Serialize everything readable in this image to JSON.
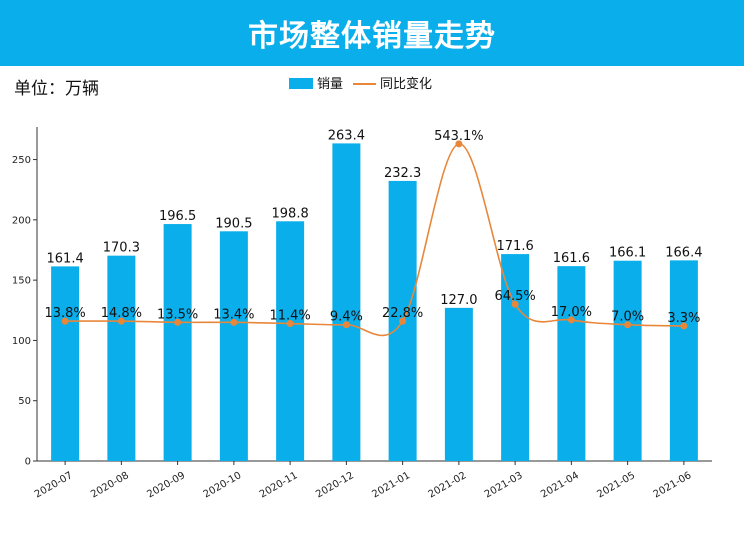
{
  "header": {
    "title": "市场整体销量走势"
  },
  "unit_label": "单位：万辆",
  "colors": {
    "bar": "#0aaeea",
    "line": "#e8873a",
    "title_bg": "#0aaeea",
    "axis": "#333333"
  },
  "chart_data": {
    "type": "bar",
    "categories": [
      "2020-07",
      "2020-08",
      "2020-09",
      "2020-10",
      "2020-11",
      "2020-12",
      "2021-01",
      "2021-02",
      "2021-03",
      "2021-04",
      "2021-05",
      "2021-06"
    ],
    "series": [
      {
        "name": "销量",
        "type": "bar",
        "values": [
          161.4,
          170.3,
          196.5,
          190.5,
          198.8,
          263.4,
          232.3,
          127.0,
          171.6,
          161.6,
          166.1,
          166.4
        ],
        "labels": [
          "161.4",
          "170.3",
          "196.5",
          "190.5",
          "198.8",
          "263.4",
          "232.3",
          "127.0",
          "171.6",
          "161.6",
          "166.1",
          "166.4"
        ]
      },
      {
        "name": "同比变化",
        "type": "line",
        "values": [
          13.8,
          14.8,
          13.5,
          13.4,
          11.4,
          9.4,
          22.8,
          543.1,
          64.5,
          17.0,
          7.0,
          3.3
        ],
        "labels": [
          "13.8%",
          "14.8%",
          "13.5%",
          "13.4%",
          "11.4%",
          "9.4%",
          "22.8%",
          "543.1%",
          "64.5%",
          "17.0%",
          "7.0%",
          "3.3%"
        ],
        "plot_on_primary_axis": [
          116,
          116,
          115,
          115,
          114,
          113,
          116,
          263,
          130,
          117,
          113,
          112
        ]
      }
    ],
    "ylim": [
      0,
      277
    ],
    "yticks": [
      "0",
      "50",
      "100",
      "150",
      "200",
      "250"
    ],
    "legend_position": "top-center",
    "grid": false
  }
}
